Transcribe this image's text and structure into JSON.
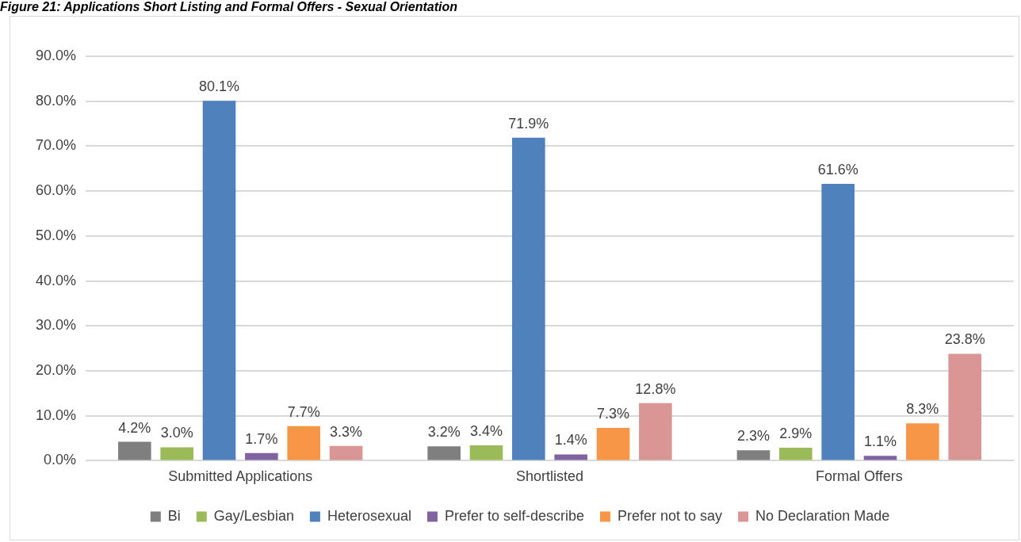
{
  "chart_data": {
    "type": "bar",
    "title": "Figure 21: Applications Short Listing and Formal Offers - Sexual Orientation",
    "categories": [
      "Submitted Applications",
      "Shortlisted",
      "Formal Offers"
    ],
    "series": [
      {
        "name": "Bi",
        "color": "#7f7f7f",
        "values": [
          4.2,
          3.2,
          2.3
        ]
      },
      {
        "name": "Gay/Lesbian",
        "color": "#9bbb59",
        "values": [
          3.0,
          3.4,
          2.9
        ]
      },
      {
        "name": "Heterosexual",
        "color": "#4f81bd",
        "values": [
          80.1,
          71.9,
          61.6
        ]
      },
      {
        "name": "Prefer to self-describe",
        "color": "#8064a2",
        "values": [
          1.7,
          1.4,
          1.1
        ]
      },
      {
        "name": "Prefer not to say",
        "color": "#f79646",
        "values": [
          7.7,
          7.3,
          8.3
        ]
      },
      {
        "name": "No Declaration Made",
        "color": "#d99694",
        "values": [
          3.3,
          12.8,
          23.8
        ]
      }
    ],
    "ylim": [
      0,
      90
    ],
    "yticks": [
      {
        "value": 0,
        "label": "0.0%"
      },
      {
        "value": 10,
        "label": "10.0%"
      },
      {
        "value": 20,
        "label": "20.0%"
      },
      {
        "value": 30,
        "label": "30.0%"
      },
      {
        "value": 40,
        "label": "40.0%"
      },
      {
        "value": 50,
        "label": "50.0%"
      },
      {
        "value": 60,
        "label": "60.0%"
      },
      {
        "value": 70,
        "label": "70.0%"
      },
      {
        "value": 80,
        "label": "80.0%"
      },
      {
        "value": 90,
        "label": "90.0%"
      }
    ],
    "grid": "y",
    "legend": "bottom",
    "value_labels": [
      [
        "4.2%",
        "3.2%",
        "2.3%"
      ],
      [
        "3.0%",
        "3.4%",
        "2.9%"
      ],
      [
        "80.1%",
        "71.9%",
        "61.6%"
      ],
      [
        "1.7%",
        "1.4%",
        "1.1%"
      ],
      [
        "7.7%",
        "7.3%",
        "8.3%"
      ],
      [
        "3.3%",
        "12.8%",
        "23.8%"
      ]
    ]
  }
}
